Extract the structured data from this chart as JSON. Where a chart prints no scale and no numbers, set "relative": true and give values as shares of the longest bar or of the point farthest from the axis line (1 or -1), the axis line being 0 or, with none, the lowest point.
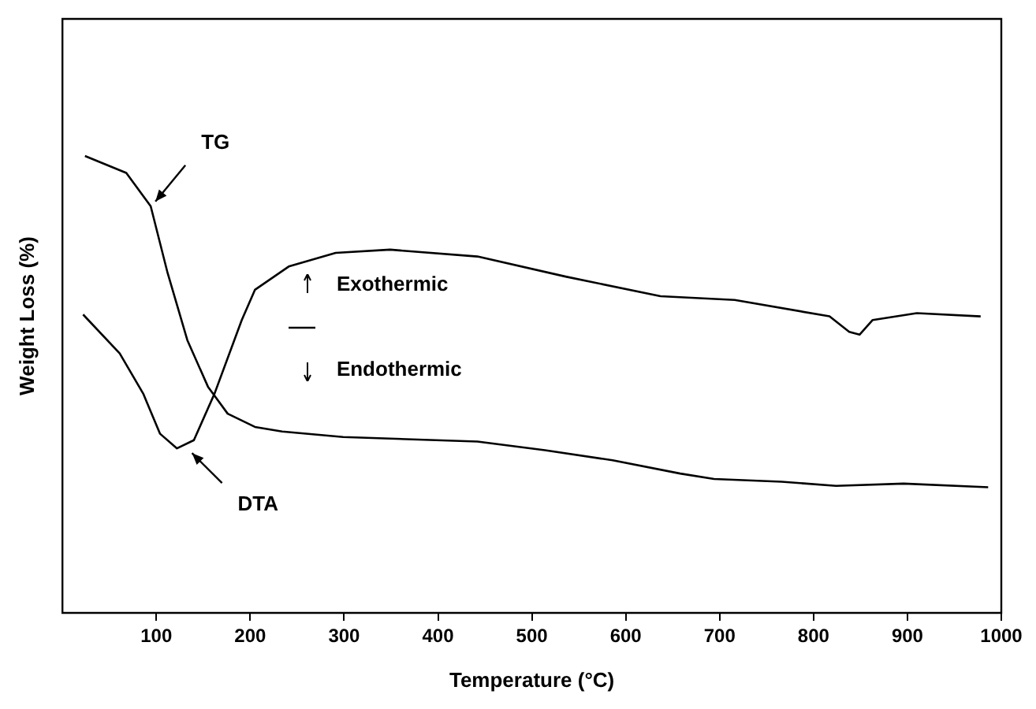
{
  "chart_data": {
    "type": "line",
    "xlabel": "Temperature (°C)",
    "ylabel": "Weight Loss (%)",
    "relative": true,
    "xlim": [
      0,
      1000
    ],
    "xticks": [
      100,
      200,
      300,
      400,
      500,
      600,
      700,
      800,
      900,
      1000
    ],
    "grid": false,
    "legend": false,
    "marker": "none",
    "line_style": "solid",
    "annotations": [
      {
        "text": "TG",
        "x": 94,
        "y": 0.89
      },
      {
        "text": "DTA",
        "x": 133,
        "y": 0.36
      },
      "Exothermic",
      "Endothermic"
    ],
    "series": [
      {
        "color": "#000000",
        "x": [
          24,
          68,
          94,
          112,
          133,
          155,
          176,
          205,
          234,
          299,
          442,
          514,
          586,
          658,
          694,
          766,
          824,
          896,
          986
        ],
        "values": [
          1.0,
          0.963,
          0.89,
          0.744,
          0.597,
          0.495,
          0.436,
          0.407,
          0.397,
          0.385,
          0.375,
          0.356,
          0.334,
          0.305,
          0.293,
          0.287,
          0.278,
          0.283,
          0.275
        ]
      },
      {
        "color": "#000000",
        "x": [
          22,
          61,
          86,
          104,
          122,
          140,
          162,
          191,
          205,
          241,
          291,
          349,
          442,
          536,
          637,
          716,
          817,
          838,
          849,
          863,
          910,
          978
        ],
        "values": [
          0.653,
          0.568,
          0.48,
          0.392,
          0.36,
          0.378,
          0.48,
          0.641,
          0.707,
          0.758,
          0.788,
          0.795,
          0.78,
          0.736,
          0.693,
          0.685,
          0.649,
          0.615,
          0.609,
          0.641,
          0.656,
          0.649
        ]
      }
    ]
  }
}
